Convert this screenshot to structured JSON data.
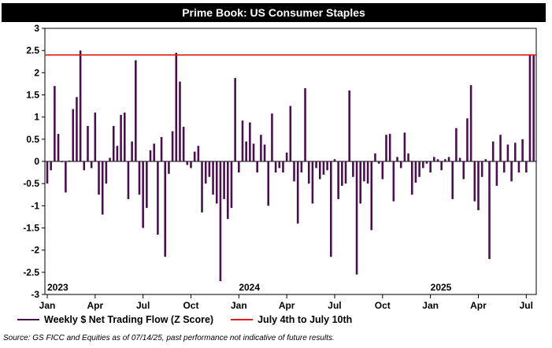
{
  "title": "Prime Book: US Consumer Staples",
  "source": "Source: GS FICC and Equities as of 07/14/25, past performance not indicative of future results.",
  "colors": {
    "bar": "#4a0f4f",
    "reference": "#e0201b"
  },
  "chart_data": {
    "type": "bar",
    "title": "Prime Book: US Consumer Staples",
    "ylim": [
      -3,
      3
    ],
    "yticks": [
      3,
      2.5,
      2,
      1.5,
      1,
      0.5,
      0,
      -0.5,
      -1,
      -1.5,
      -2,
      -2.5,
      -3
    ],
    "ytick_labels": [
      "3",
      "2.5",
      "2",
      "1.5",
      "1",
      "0.5",
      "0",
      "-0.5",
      "-1",
      "-1.5",
      "-2",
      "-2.5",
      "-3"
    ],
    "xticks": [
      {
        "label": "Jan",
        "week": 0
      },
      {
        "label": "Apr",
        "week": 13
      },
      {
        "label": "Jul",
        "week": 26
      },
      {
        "label": "Oct",
        "week": 39
      },
      {
        "label": "Jan",
        "week": 52
      },
      {
        "label": "Apr",
        "week": 65
      },
      {
        "label": "Jul",
        "week": 78
      },
      {
        "label": "Oct",
        "week": 91
      },
      {
        "label": "Jan",
        "week": 104
      },
      {
        "label": "Apr",
        "week": 117
      },
      {
        "label": "Jul",
        "week": 130
      }
    ],
    "year_labels": [
      {
        "label": "2023",
        "week": 0
      },
      {
        "label": "2024",
        "week": 52
      },
      {
        "label": "2025",
        "week": 104
      }
    ],
    "x_start": "2023-01-06",
    "x_interval": "weekly",
    "reference_line": {
      "value": 2.4
    },
    "grid": false,
    "legend_position": "bottom",
    "series": [
      {
        "name": "Weekly $ Net Trading Flow (Z Score)",
        "values": [
          -0.5,
          -0.2,
          1.7,
          0.62,
          -0.02,
          -0.7,
          0.02,
          1.18,
          1.45,
          2.5,
          -0.2,
          0.8,
          -0.15,
          1.1,
          -0.75,
          -1.2,
          -0.5,
          0.08,
          0.8,
          0.35,
          1.05,
          1.1,
          -0.85,
          0.45,
          2.28,
          -0.75,
          -1.5,
          -1.05,
          0.25,
          0.4,
          -1.65,
          0.55,
          -2.15,
          -0.28,
          0.68,
          2.45,
          1.8,
          0.78,
          -0.08,
          -0.15,
          0.22,
          0.35,
          -1.15,
          -0.5,
          -0.35,
          -0.75,
          -0.95,
          -2.7,
          -0.85,
          -1.3,
          -1.05,
          1.88,
          -0.25,
          0.92,
          0.45,
          0.88,
          0.4,
          -0.25,
          0.6,
          0.38,
          -1.0,
          1.08,
          -0.25,
          -0.15,
          -0.25,
          0.2,
          1.25,
          -0.45,
          -1.4,
          -0.25,
          1.65,
          -0.5,
          -0.95,
          -0.15,
          -0.4,
          -0.3,
          -0.2,
          -2.15,
          0.05,
          -0.85,
          -0.55,
          -0.5,
          1.6,
          -0.35,
          -2.55,
          -0.95,
          -0.45,
          -0.5,
          -1.55,
          0.18,
          -0.05,
          -0.4,
          0.6,
          0.62,
          -0.9,
          0.1,
          -0.15,
          0.65,
          0.18,
          -0.75,
          -0.48,
          -0.35,
          -0.15,
          -0.05,
          -0.25,
          0.1,
          0.05,
          -0.2,
          0.05,
          0.1,
          -0.85,
          0.75,
          0.08,
          -0.4,
          0.97,
          1.72,
          -0.9,
          -1.1,
          -0.35,
          0.05,
          -2.2,
          0.45,
          -0.55,
          0.6,
          -0.25,
          0.38,
          -0.45,
          0.42,
          -0.25,
          0.5,
          -0.25,
          2.4,
          2.4
        ]
      }
    ],
    "reference_series_name": "July 4th to July 10th"
  }
}
